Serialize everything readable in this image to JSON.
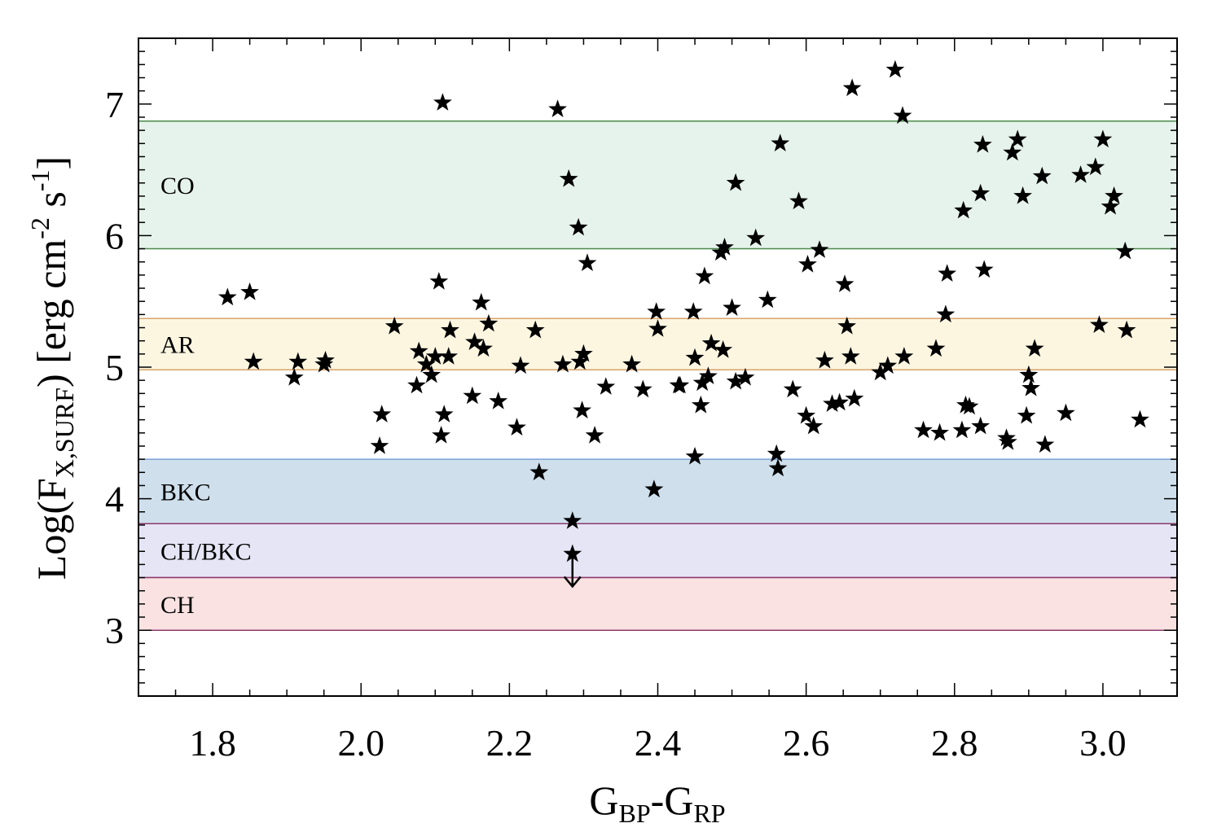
{
  "chart_data": {
    "type": "scatter",
    "xlabel": {
      "base1": "G",
      "sub1": "BP",
      "dash": "-",
      "base2": "G",
      "sub2": "RP"
    },
    "ylabel": {
      "prefix": "Log(F",
      "sub": "X,SURF",
      "mid": ") [erg cm",
      "sup1": "-2",
      "mid2": " s",
      "sup2": "-1",
      "suffix": "]"
    },
    "xlim": [
      1.7,
      3.1
    ],
    "ylim": [
      2.5,
      7.5
    ],
    "x_ticks": [
      1.8,
      2.0,
      2.2,
      2.4,
      2.6,
      2.8,
      3.0
    ],
    "x_tick_labels": [
      "1.8",
      "2.0",
      "2.2",
      "2.4",
      "2.6",
      "2.8",
      "3.0"
    ],
    "y_ticks": [
      3,
      4,
      5,
      6,
      7
    ],
    "y_tick_labels": [
      "3",
      "4",
      "5",
      "6",
      "7"
    ],
    "bands": [
      {
        "label": "CO",
        "ymin": 5.9,
        "ymax": 6.87,
        "fill": "#e6f3ec",
        "line": "#4a8a4a"
      },
      {
        "label": "AR",
        "ymin": 4.98,
        "ymax": 5.37,
        "fill": "#fcf6e1",
        "line": "#d9a36b"
      },
      {
        "label": "BKC",
        "ymin": 3.81,
        "ymax": 4.3,
        "fill": "#cfdfec",
        "line": "#7aa0d8"
      },
      {
        "label": "CH/BKC",
        "ymin": 3.4,
        "ymax": 3.81,
        "fill": "#e6e5f5",
        "line": "#8b3a6e"
      },
      {
        "label": "CH",
        "ymin": 3.0,
        "ymax": 3.4,
        "fill": "#f9e2e1",
        "line": "#8b3a6e"
      }
    ],
    "upper_limit": {
      "x": 2.285,
      "y": 3.58
    },
    "series": [
      {
        "name": "stars",
        "marker": "star",
        "points": [
          [
            1.82,
            5.53
          ],
          [
            1.85,
            5.57
          ],
          [
            1.855,
            5.04
          ],
          [
            1.91,
            4.92
          ],
          [
            1.915,
            5.04
          ],
          [
            1.95,
            5.02
          ],
          [
            1.952,
            5.05
          ],
          [
            2.025,
            4.4
          ],
          [
            2.028,
            4.64
          ],
          [
            2.045,
            5.31
          ],
          [
            2.075,
            4.86
          ],
          [
            2.078,
            5.12
          ],
          [
            2.088,
            5.02
          ],
          [
            2.095,
            4.94
          ],
          [
            2.1,
            5.08
          ],
          [
            2.105,
            5.65
          ],
          [
            2.108,
            4.48
          ],
          [
            2.112,
            4.64
          ],
          [
            2.118,
            5.08
          ],
          [
            2.12,
            5.28
          ],
          [
            2.11,
            7.01
          ],
          [
            2.15,
            4.78
          ],
          [
            2.153,
            5.19
          ],
          [
            2.162,
            5.49
          ],
          [
            2.165,
            5.14
          ],
          [
            2.172,
            5.33
          ],
          [
            2.185,
            4.74
          ],
          [
            2.21,
            4.54
          ],
          [
            2.215,
            5.01
          ],
          [
            2.235,
            5.28
          ],
          [
            2.24,
            4.2
          ],
          [
            2.265,
            6.96
          ],
          [
            2.272,
            5.02
          ],
          [
            2.28,
            6.43
          ],
          [
            2.285,
            3.83
          ],
          [
            2.285,
            3.58
          ],
          [
            2.293,
            6.06
          ],
          [
            2.295,
            5.04
          ],
          [
            2.298,
            4.67
          ],
          [
            2.3,
            5.1
          ],
          [
            2.305,
            5.79
          ],
          [
            2.315,
            4.48
          ],
          [
            2.33,
            4.85
          ],
          [
            2.365,
            5.02
          ],
          [
            2.38,
            4.83
          ],
          [
            2.395,
            4.07
          ],
          [
            2.398,
            5.42
          ],
          [
            2.4,
            5.29
          ],
          [
            2.428,
            4.86
          ],
          [
            2.43,
            4.86
          ],
          [
            2.448,
            5.42
          ],
          [
            2.45,
            5.07
          ],
          [
            2.45,
            4.32
          ],
          [
            2.458,
            4.71
          ],
          [
            2.46,
            4.88
          ],
          [
            2.463,
            5.69
          ],
          [
            2.468,
            4.93
          ],
          [
            2.472,
            5.18
          ],
          [
            2.485,
            5.87
          ],
          [
            2.488,
            5.13
          ],
          [
            2.49,
            5.91
          ],
          [
            2.5,
            5.45
          ],
          [
            2.505,
            4.89
          ],
          [
            2.505,
            6.4
          ],
          [
            2.518,
            4.92
          ],
          [
            2.532,
            5.98
          ],
          [
            2.548,
            5.51
          ],
          [
            2.56,
            4.34
          ],
          [
            2.562,
            4.23
          ],
          [
            2.565,
            6.7
          ],
          [
            2.582,
            4.83
          ],
          [
            2.59,
            6.26
          ],
          [
            2.6,
            4.63
          ],
          [
            2.602,
            5.78
          ],
          [
            2.61,
            4.55
          ],
          [
            2.618,
            5.89
          ],
          [
            2.625,
            5.05
          ],
          [
            2.635,
            4.72
          ],
          [
            2.645,
            4.73
          ],
          [
            2.652,
            5.63
          ],
          [
            2.655,
            5.31
          ],
          [
            2.66,
            5.08
          ],
          [
            2.662,
            7.12
          ],
          [
            2.665,
            4.76
          ],
          [
            2.7,
            4.96
          ],
          [
            2.71,
            5.01
          ],
          [
            2.72,
            7.26
          ],
          [
            2.73,
            6.91
          ],
          [
            2.732,
            5.08
          ],
          [
            2.758,
            4.52
          ],
          [
            2.775,
            5.14
          ],
          [
            2.78,
            4.5
          ],
          [
            2.788,
            5.4
          ],
          [
            2.79,
            5.71
          ],
          [
            2.81,
            4.52
          ],
          [
            2.812,
            6.19
          ],
          [
            2.815,
            4.71
          ],
          [
            2.82,
            4.7
          ],
          [
            2.835,
            4.55
          ],
          [
            2.835,
            6.32
          ],
          [
            2.838,
            6.69
          ],
          [
            2.84,
            5.74
          ],
          [
            2.87,
            4.46
          ],
          [
            2.872,
            4.43
          ],
          [
            2.878,
            6.63
          ],
          [
            2.885,
            6.73
          ],
          [
            2.892,
            6.3
          ],
          [
            2.897,
            4.63
          ],
          [
            2.9,
            4.94
          ],
          [
            2.903,
            4.84
          ],
          [
            2.908,
            5.14
          ],
          [
            2.918,
            6.45
          ],
          [
            2.922,
            4.41
          ],
          [
            2.95,
            4.65
          ],
          [
            2.97,
            6.46
          ],
          [
            2.99,
            6.52
          ],
          [
            2.995,
            5.32
          ],
          [
            3.0,
            6.73
          ],
          [
            3.01,
            6.22
          ],
          [
            3.015,
            6.3
          ],
          [
            3.03,
            5.88
          ],
          [
            3.032,
            5.28
          ],
          [
            3.05,
            4.6
          ]
        ]
      }
    ]
  }
}
